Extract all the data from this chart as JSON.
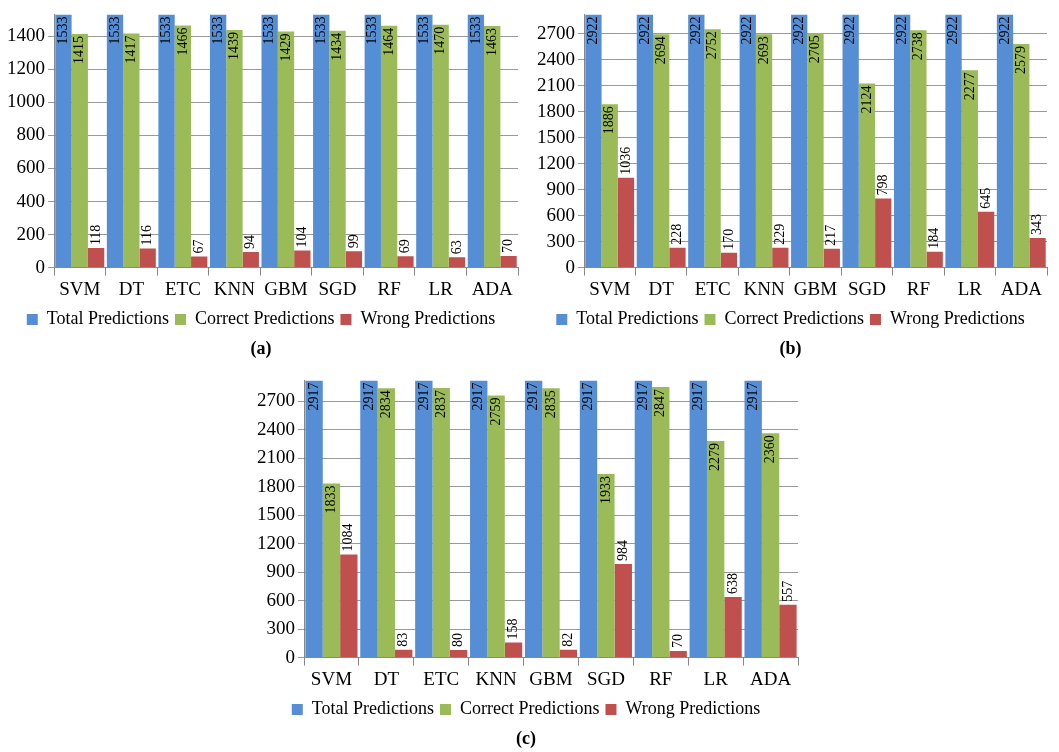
{
  "chart_data": [
    {
      "type": "bar",
      "title": "(a)",
      "categories": [
        "SVM",
        "DT",
        "ETC",
        "KNN",
        "GBM",
        "SGD",
        "RF",
        "LR",
        "ADA"
      ],
      "series": [
        {
          "name": "Total Predictions",
          "color": "#558ed5",
          "values": [
            1533,
            1533,
            1533,
            1533,
            1533,
            1533,
            1533,
            1533,
            1533
          ]
        },
        {
          "name": "Correct Predictions",
          "color": "#9bbb59",
          "values": [
            1415,
            1417,
            1466,
            1439,
            1429,
            1434,
            1464,
            1470,
            1463
          ]
        },
        {
          "name": "Wrong Predictions",
          "color": "#c0504d",
          "values": [
            118,
            116,
            67,
            94,
            104,
            99,
            69,
            63,
            70
          ]
        }
      ],
      "ylim": [
        0,
        1533
      ],
      "yticks": [
        0,
        200,
        400,
        600,
        800,
        1000,
        1200,
        1400
      ],
      "grid": "y",
      "legend": "bottom",
      "data_labels": true
    },
    {
      "type": "bar",
      "title": "(b)",
      "categories": [
        "SVM",
        "DT",
        "ETC",
        "KNN",
        "GBM",
        "SGD",
        "RF",
        "LR",
        "ADA"
      ],
      "series": [
        {
          "name": "Total Predictions",
          "color": "#558ed5",
          "values": [
            2922,
            2922,
            2922,
            2922,
            2922,
            2922,
            2922,
            2922,
            2922
          ]
        },
        {
          "name": "Correct Predictions",
          "color": "#9bbb59",
          "values": [
            1886,
            2694,
            2752,
            2693,
            2705,
            2124,
            2738,
            2277,
            2579
          ]
        },
        {
          "name": "Wrong Predictions",
          "color": "#c0504d",
          "values": [
            1036,
            228,
            170,
            229,
            217,
            798,
            184,
            645,
            343
          ]
        }
      ],
      "ylim": [
        0,
        2922
      ],
      "yticks": [
        0,
        300,
        600,
        900,
        1200,
        1500,
        1800,
        2100,
        2400,
        2700
      ],
      "grid": "y",
      "legend": "bottom",
      "data_labels": true
    },
    {
      "type": "bar",
      "title": "(c)",
      "categories": [
        "SVM",
        "DT",
        "ETC",
        "KNN",
        "GBM",
        "SGD",
        "RF",
        "LR",
        "ADA"
      ],
      "series": [
        {
          "name": "Total Predictions",
          "color": "#558ed5",
          "values": [
            2917,
            2917,
            2917,
            2917,
            2917,
            2917,
            2917,
            2917,
            2917
          ]
        },
        {
          "name": "Correct Predictions",
          "color": "#9bbb59",
          "values": [
            1833,
            2834,
            2837,
            2759,
            2835,
            1933,
            2847,
            2279,
            2360
          ]
        },
        {
          "name": "Wrong Predictions",
          "color": "#c0504d",
          "values": [
            1084,
            83,
            80,
            158,
            82,
            984,
            70,
            638,
            557
          ]
        }
      ],
      "ylim": [
        0,
        2917
      ],
      "yticks": [
        0,
        300,
        600,
        900,
        1200,
        1500,
        1800,
        2100,
        2400,
        2700
      ],
      "grid": "y",
      "legend": "bottom",
      "data_labels": true
    }
  ]
}
